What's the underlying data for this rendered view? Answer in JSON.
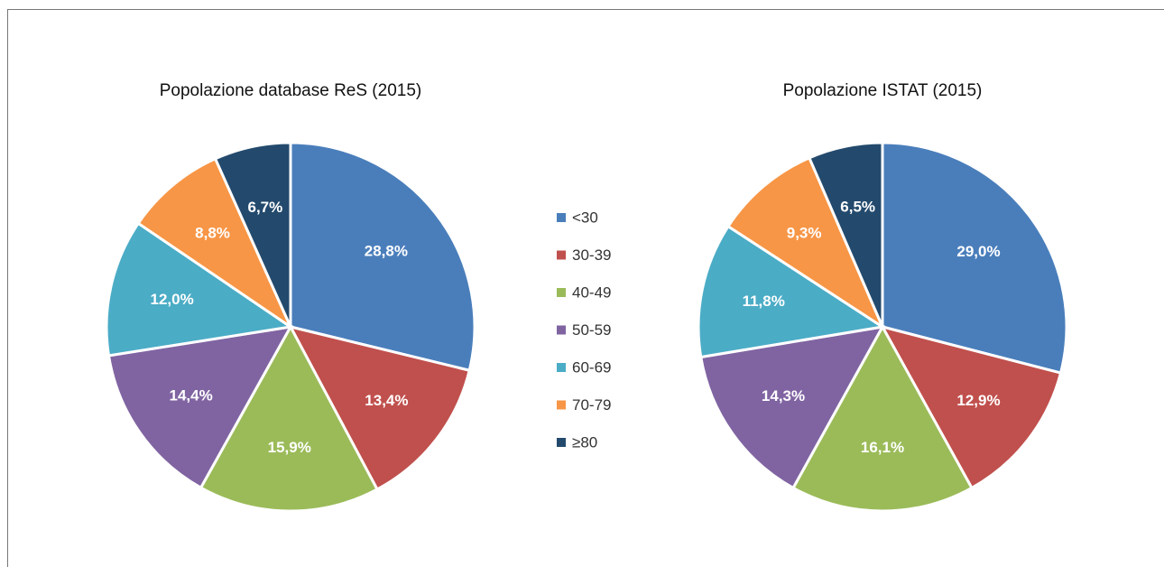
{
  "chart_data": [
    {
      "type": "pie",
      "title": "Popolazione database ReS (2015)",
      "values": [
        28.8,
        13.4,
        15.9,
        14.4,
        12.0,
        8.8,
        6.7
      ],
      "value_labels": [
        "28,8%",
        "13,4%",
        "15,9%",
        "14,4%",
        "12,0%",
        "8,8%",
        "6,7%"
      ]
    },
    {
      "type": "pie",
      "title": "Popolazione ISTAT (2015)",
      "values": [
        29.0,
        12.9,
        16.1,
        14.3,
        11.8,
        9.3,
        6.5
      ],
      "value_labels": [
        "29,0%",
        "12,9%",
        "16,1%",
        "14,3%",
        "11,8%",
        "9,3%",
        "6,5%"
      ]
    }
  ],
  "legend": {
    "categories": [
      "<30",
      "30-39",
      "40-49",
      "50-59",
      "60-69",
      "70-79",
      "≥80"
    ],
    "colors": [
      "#4a7ebb",
      "#c0504d",
      "#9bbb59",
      "#8064a2",
      "#4bacc6",
      "#f79646",
      "#234a6d"
    ]
  }
}
